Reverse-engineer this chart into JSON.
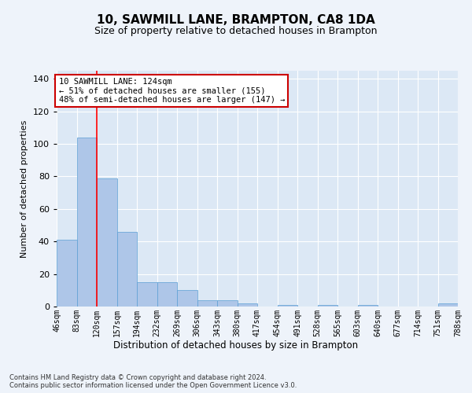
{
  "title": "10, SAWMILL LANE, BRAMPTON, CA8 1DA",
  "subtitle": "Size of property relative to detached houses in Brampton",
  "xlabel": "Distribution of detached houses by size in Brampton",
  "ylabel": "Number of detached properties",
  "bar_values": [
    41,
    104,
    79,
    46,
    15,
    15,
    10,
    4,
    4,
    2,
    0,
    1,
    0,
    1,
    0,
    1,
    0,
    0,
    0,
    2
  ],
  "bin_labels": [
    "46sqm",
    "83sqm",
    "120sqm",
    "157sqm",
    "194sqm",
    "232sqm",
    "269sqm",
    "306sqm",
    "343sqm",
    "380sqm",
    "417sqm",
    "454sqm",
    "491sqm",
    "528sqm",
    "565sqm",
    "603sqm",
    "640sqm",
    "677sqm",
    "714sqm",
    "751sqm",
    "788sqm"
  ],
  "bar_color": "#aec6e8",
  "bar_edge_color": "#5a9fd4",
  "red_line_x": 2,
  "annotation_text": "10 SAWMILL LANE: 124sqm\n← 51% of detached houses are smaller (155)\n48% of semi-detached houses are larger (147) →",
  "annotation_box_color": "#ffffff",
  "annotation_box_edge": "#cc0000",
  "background_color": "#eef3fa",
  "plot_bg_color": "#dce8f5",
  "grid_color": "#ffffff",
  "ylim": [
    0,
    145
  ],
  "yticks": [
    0,
    20,
    40,
    60,
    80,
    100,
    120,
    140
  ],
  "footer_line1": "Contains HM Land Registry data © Crown copyright and database right 2024.",
  "footer_line2": "Contains public sector information licensed under the Open Government Licence v3.0.",
  "title_fontsize": 11,
  "subtitle_fontsize": 9,
  "tick_fontsize": 7,
  "ylabel_fontsize": 8,
  "xlabel_fontsize": 8.5
}
